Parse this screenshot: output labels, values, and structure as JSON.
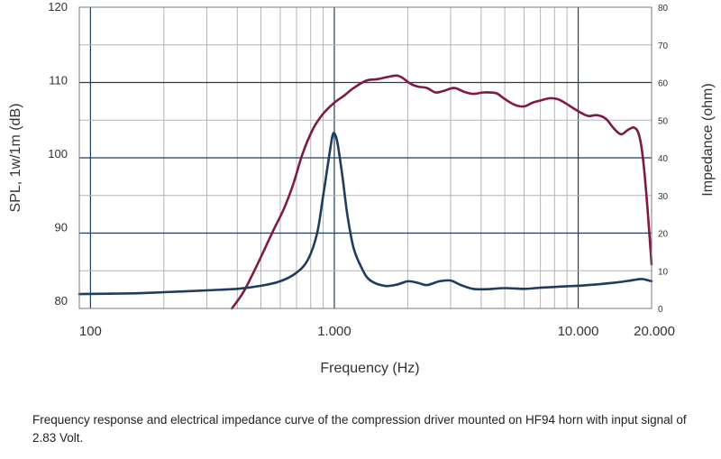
{
  "caption": "Frequency response and electrical impedance curve of the compression driver mounted on HF94 horn with input signal of 2.83 Volt.",
  "chart_data": {
    "type": "line",
    "xlabel": "Frequency (Hz)",
    "ylabel": "SPL, 1w/1m (dB)",
    "y2label": "Impedance (ohm)",
    "x_scale": "log",
    "xlim": [
      90,
      20000
    ],
    "ylim": [
      79,
      120
    ],
    "y2lim": [
      0,
      80
    ],
    "grid": true,
    "x_tick_labels": [
      {
        "value": 100,
        "label": "100"
      },
      {
        "value": 1000,
        "label": "1.000"
      },
      {
        "value": 10000,
        "label": "10.000"
      },
      {
        "value": 20000,
        "label": "20.000"
      }
    ],
    "y_ticks": [
      {
        "value": 80,
        "label": "80"
      },
      {
        "value": 90,
        "label": "90"
      },
      {
        "value": 100,
        "label": "100"
      },
      {
        "value": 110,
        "label": "110"
      },
      {
        "value": 120,
        "label": "120"
      }
    ],
    "y2_ticks": [
      {
        "value": 0,
        "label": "0"
      },
      {
        "value": 10,
        "label": "10"
      },
      {
        "value": 20,
        "label": "20"
      },
      {
        "value": 30,
        "label": "30"
      },
      {
        "value": 40,
        "label": "40"
      },
      {
        "value": 50,
        "label": "50"
      },
      {
        "value": 60,
        "label": "60"
      },
      {
        "value": 70,
        "label": "70"
      },
      {
        "value": 80,
        "label": "80"
      }
    ],
    "series": [
      {
        "axis": "left",
        "color": "#7d1a46",
        "points": [
          [
            380,
            79
          ],
          [
            420,
            81
          ],
          [
            460,
            83.5
          ],
          [
            500,
            86
          ],
          [
            560,
            89.5
          ],
          [
            620,
            92.5
          ],
          [
            680,
            96
          ],
          [
            740,
            100
          ],
          [
            820,
            103.5
          ],
          [
            900,
            105.5
          ],
          [
            1000,
            107
          ],
          [
            1100,
            108
          ],
          [
            1200,
            109
          ],
          [
            1350,
            110
          ],
          [
            1500,
            110.2
          ],
          [
            1650,
            110.5
          ],
          [
            1800,
            110.7
          ],
          [
            1900,
            110.4
          ],
          [
            2050,
            109.6
          ],
          [
            2200,
            109.2
          ],
          [
            2400,
            109
          ],
          [
            2600,
            108.4
          ],
          [
            2800,
            108.6
          ],
          [
            3100,
            109
          ],
          [
            3400,
            108.5
          ],
          [
            3700,
            108.2
          ],
          [
            4100,
            108.4
          ],
          [
            4600,
            108.3
          ],
          [
            5000,
            107.5
          ],
          [
            5500,
            106.7
          ],
          [
            6000,
            106.5
          ],
          [
            6500,
            107
          ],
          [
            7000,
            107.3
          ],
          [
            7600,
            107.6
          ],
          [
            8200,
            107.5
          ],
          [
            8800,
            107
          ],
          [
            9500,
            106.3
          ],
          [
            10300,
            105.6
          ],
          [
            11000,
            105.2
          ],
          [
            12000,
            105.3
          ],
          [
            13000,
            104.8
          ],
          [
            14000,
            103.5
          ],
          [
            15000,
            102.7
          ],
          [
            16000,
            103.3
          ],
          [
            17000,
            103.6
          ],
          [
            17800,
            102.5
          ],
          [
            18500,
            99
          ],
          [
            19200,
            93
          ],
          [
            19800,
            87
          ],
          [
            20000,
            85
          ]
        ]
      },
      {
        "axis": "right",
        "color": "#1f3c5e",
        "points": [
          [
            90,
            3.8
          ],
          [
            150,
            4
          ],
          [
            200,
            4.3
          ],
          [
            300,
            4.8
          ],
          [
            400,
            5.2
          ],
          [
            500,
            6
          ],
          [
            600,
            7.2
          ],
          [
            700,
            9.5
          ],
          [
            780,
            13
          ],
          [
            850,
            20
          ],
          [
            900,
            30
          ],
          [
            950,
            40
          ],
          [
            980,
            45.5
          ],
          [
            1000,
            46.5
          ],
          [
            1030,
            44
          ],
          [
            1080,
            35
          ],
          [
            1130,
            25
          ],
          [
            1200,
            16
          ],
          [
            1300,
            10.5
          ],
          [
            1400,
            7.5
          ],
          [
            1600,
            6
          ],
          [
            1800,
            6.3
          ],
          [
            2000,
            7.2
          ],
          [
            2200,
            6.8
          ],
          [
            2400,
            6.2
          ],
          [
            2700,
            7.2
          ],
          [
            3000,
            7.4
          ],
          [
            3300,
            6.2
          ],
          [
            3700,
            5.2
          ],
          [
            4200,
            5.1
          ],
          [
            5000,
            5.4
          ],
          [
            6000,
            5.2
          ],
          [
            7000,
            5.5
          ],
          [
            8000,
            5.7
          ],
          [
            9000,
            5.9
          ],
          [
            10000,
            6
          ],
          [
            12000,
            6.4
          ],
          [
            14000,
            6.8
          ],
          [
            16000,
            7.3
          ],
          [
            18000,
            7.8
          ],
          [
            19000,
            7.6
          ],
          [
            20000,
            7.2
          ]
        ]
      }
    ]
  }
}
